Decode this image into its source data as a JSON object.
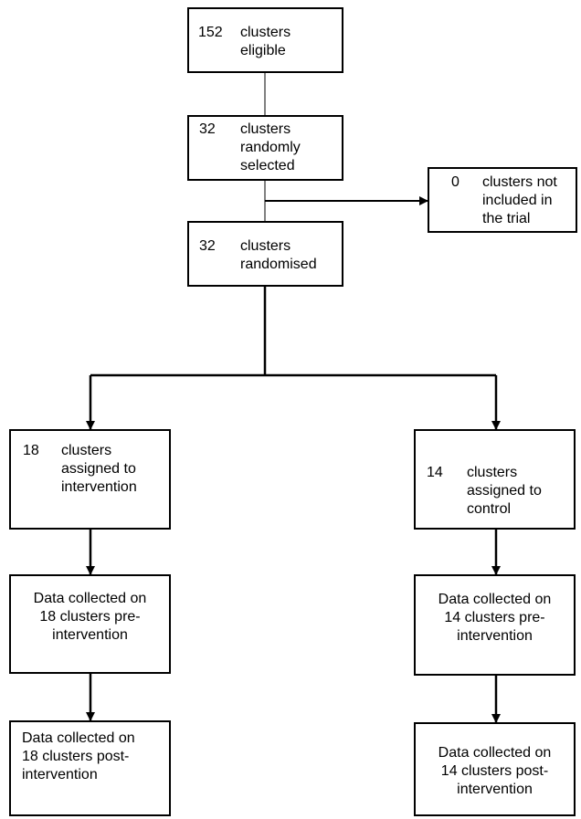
{
  "boxes": {
    "eligible": {
      "number": "152",
      "text": "clusters\neligible"
    },
    "selected": {
      "number": "32",
      "text": "clusters\nrandomly\nselected"
    },
    "excluded": {
      "number": "0",
      "text": "clusters not\nincluded in\nthe trial"
    },
    "randomised": {
      "number": "32",
      "text": "clusters\nrandomised"
    },
    "intervention": {
      "number": "18",
      "text": "clusters\nassigned to\nintervention"
    },
    "control": {
      "number": "14",
      "text": "clusters\nassigned to\ncontrol"
    },
    "pre_intervention_arm": {
      "text": "Data collected on\n18 clusters pre-\nintervention"
    },
    "pre_control_arm": {
      "text": "Data collected on\n14 clusters pre-\nintervention"
    },
    "post_intervention_arm": {
      "text": "Data collected on\n18 clusters post-\nintervention"
    },
    "post_control_arm": {
      "text": "Data collected on\n14 clusters post-\nintervention"
    }
  }
}
